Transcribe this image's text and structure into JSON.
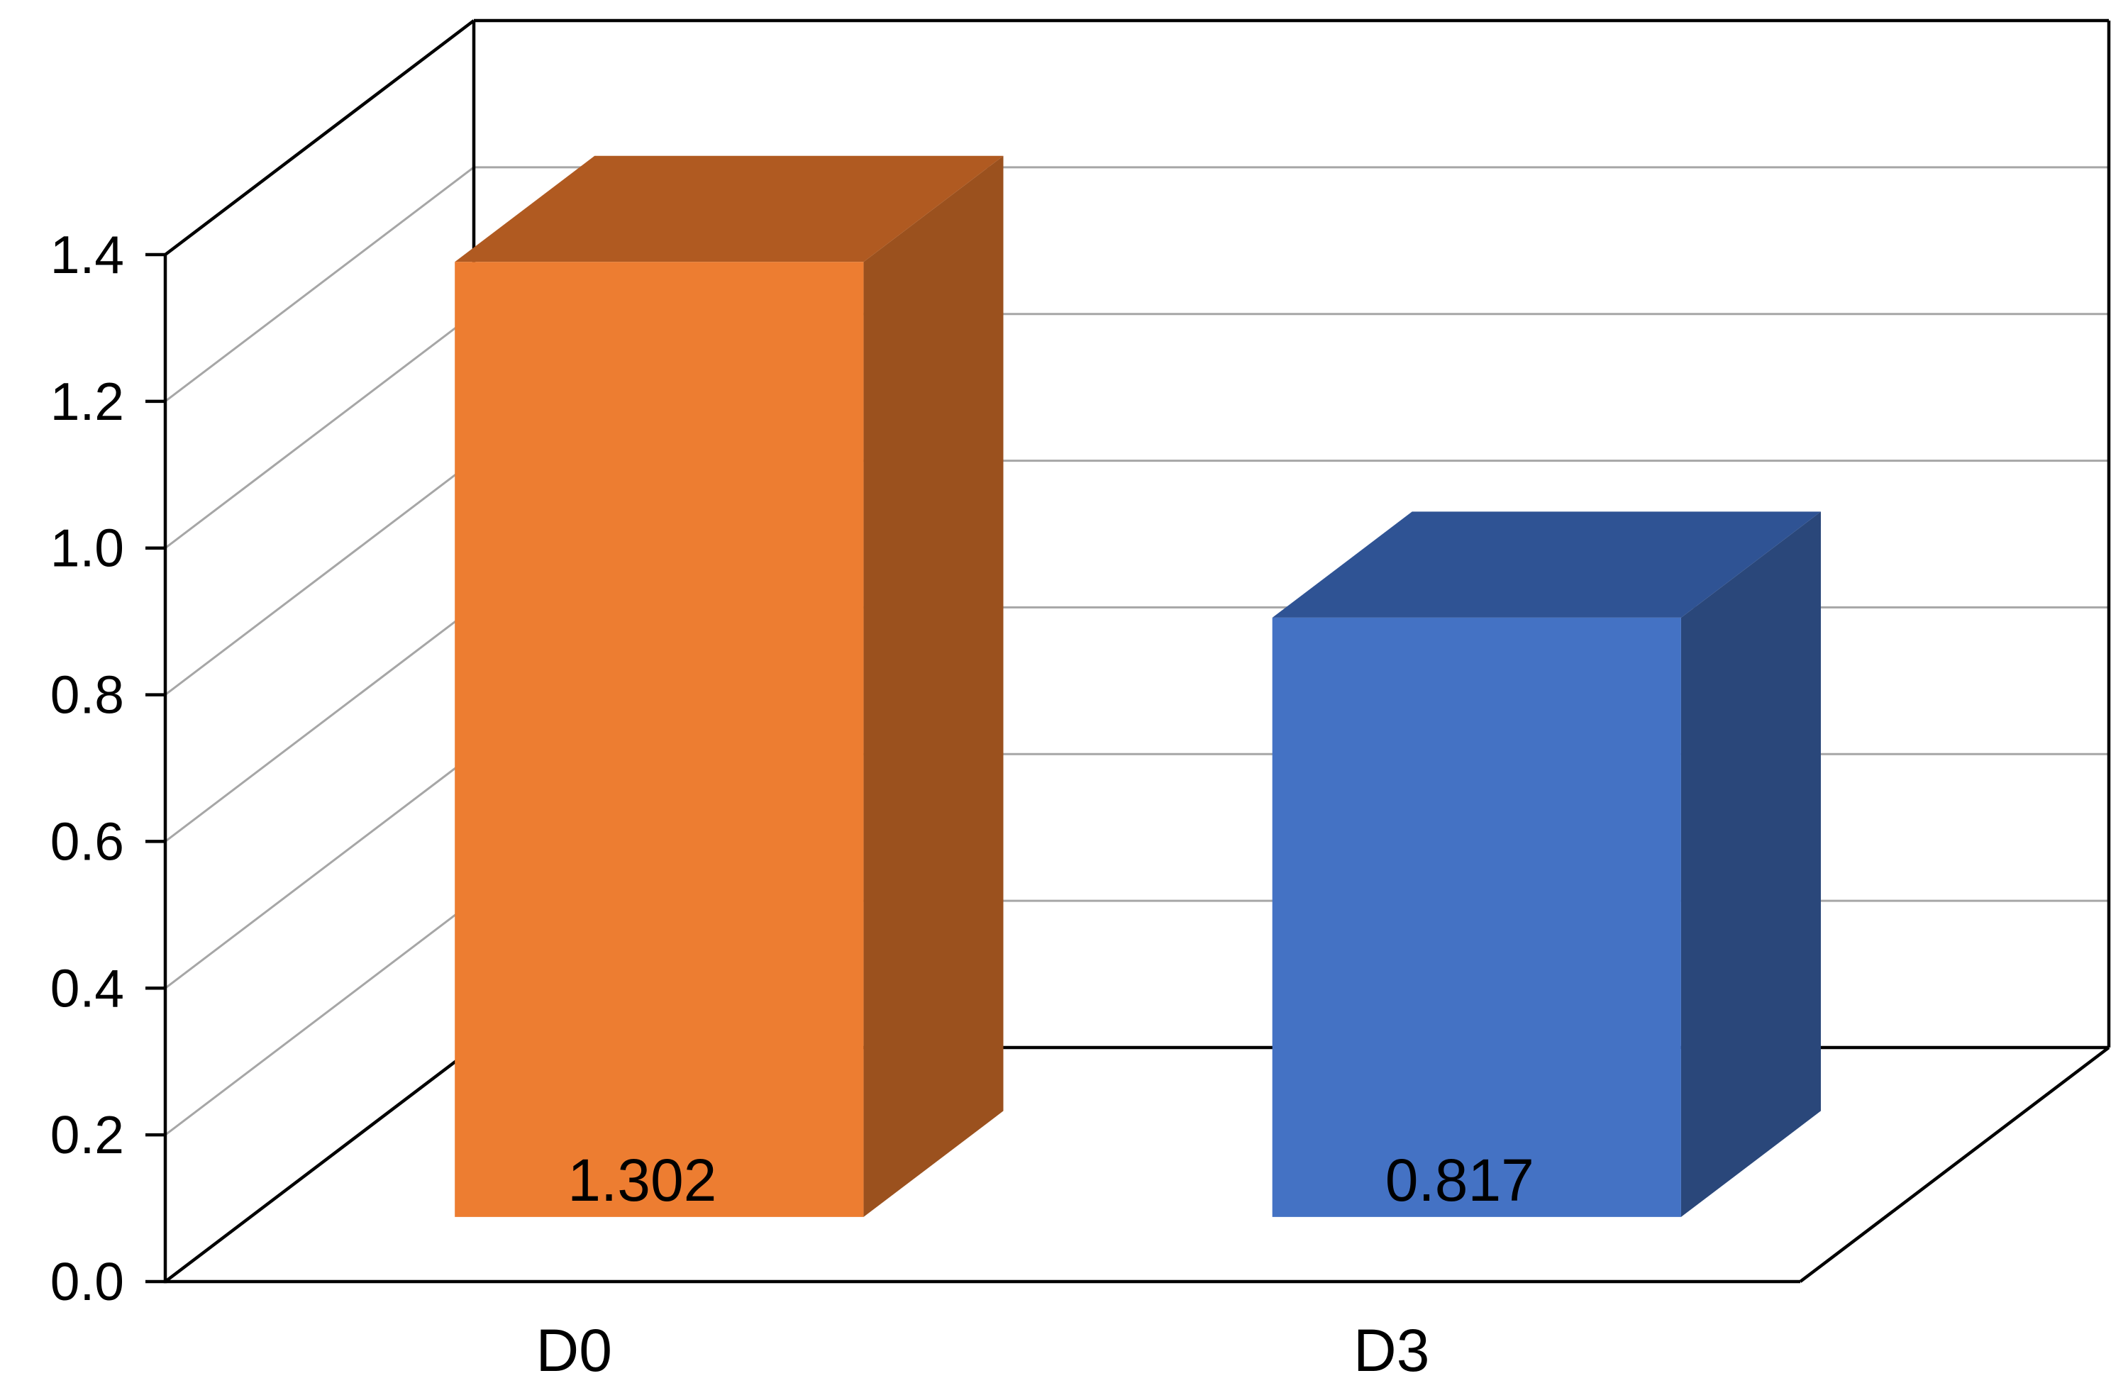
{
  "chart_data": {
    "type": "bar",
    "variant": "3d-column",
    "title": "",
    "xlabel": "",
    "ylabel": "",
    "categories": [
      "D0",
      "D3"
    ],
    "series": [
      {
        "name": "",
        "values": [
          1.302,
          0.817
        ]
      }
    ],
    "data_labels": [
      "1.302",
      "0.817"
    ],
    "bar_colors": [
      {
        "front": "#ED7D31",
        "top": "#B05A21",
        "side": "#9B511E"
      },
      {
        "front": "#4472C4",
        "top": "#2F5394",
        "side": "#2A477A"
      }
    ],
    "ylim": [
      0,
      1.4
    ],
    "ytick_interval": 0.2,
    "ytick_labels": [
      "0.0",
      "0.2",
      "0.4",
      "0.6",
      "0.8",
      "1.0",
      "1.2",
      "1.4"
    ],
    "grid": true,
    "legend_position": "none",
    "colors": {
      "background": "#FFFFFF",
      "axis_line": "#000000",
      "gridline": "#A6A6A6",
      "label_text": "#000000"
    }
  }
}
